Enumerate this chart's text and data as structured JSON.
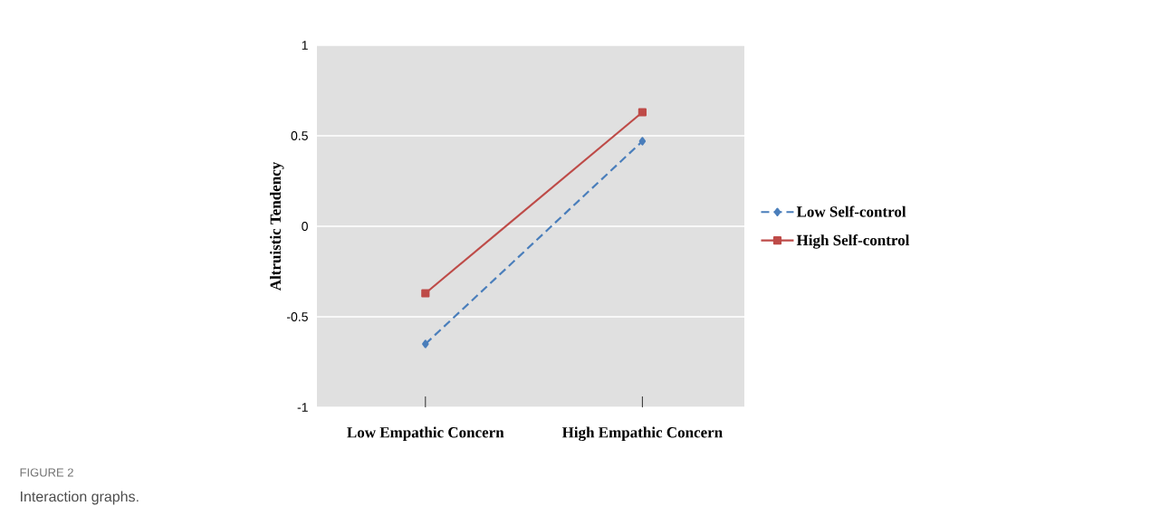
{
  "chart_data": {
    "type": "line",
    "ylabel": "Altruistic Tendency",
    "categories": [
      "Low Empathic Concern",
      "High Empathic Concern"
    ],
    "series": [
      {
        "name": "Low Self-control",
        "color": "#4a7ebb",
        "values": [
          -0.65,
          0.47
        ],
        "marker": "diamond",
        "line_style": "dashed"
      },
      {
        "name": "High Self-control",
        "color": "#be4b48",
        "values": [
          -0.37,
          0.63
        ],
        "marker": "square",
        "line_style": "solid"
      }
    ],
    "ylim": [
      -1,
      1
    ],
    "yticks": [
      -1,
      -0.5,
      0,
      0.5,
      1
    ],
    "grid": "y",
    "legend": "right",
    "annotations": [
      "FIGURE 2",
      "Interaction graphs."
    ]
  }
}
